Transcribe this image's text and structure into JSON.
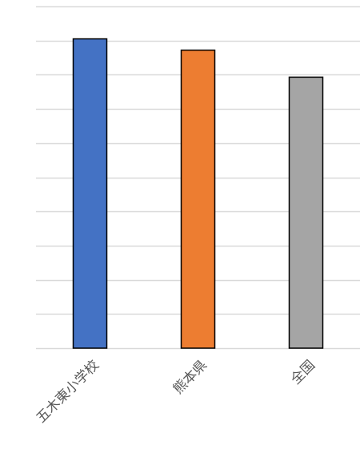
{
  "chart_data": {
    "type": "bar",
    "categories": [
      "五木東小学校",
      "熊本県",
      "全国"
    ],
    "values": [
      9.05,
      8.72,
      7.93
    ],
    "ylim": [
      0,
      10
    ],
    "grid": true,
    "legend": "none",
    "colors": [
      "#4472C4",
      "#ED7D31",
      "#A5A5A5"
    ],
    "gridline_color": "#D9D9D9",
    "bar_outline_color": "#000000"
  }
}
